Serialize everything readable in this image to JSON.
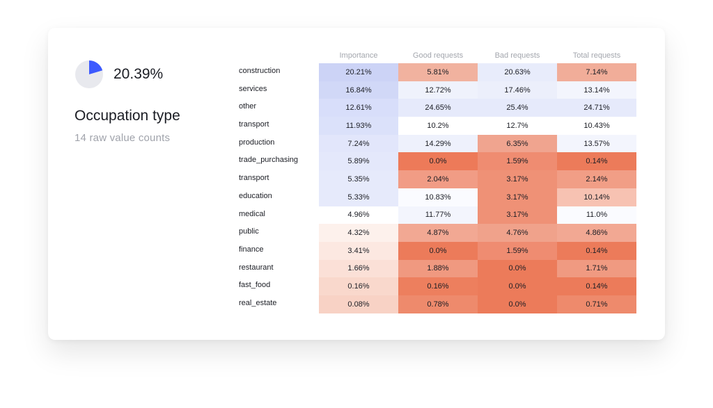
{
  "summary": {
    "pie_percent": 20.39,
    "percent_label": "20.39%",
    "title": "Occupation type",
    "subtitle": "14 raw value counts",
    "pie_fill_color": "#3d5afe",
    "pie_bg_color": "#e8e9ee"
  },
  "chart_data": {
    "type": "heatmap",
    "columns": [
      "Importance",
      "Good requests",
      "Bad requests",
      "Total requests"
    ],
    "rows": [
      {
        "label": "construction",
        "values": [
          "20.21%",
          "5.81%",
          "20.63%",
          "7.14%"
        ],
        "colors": [
          "#ccd3f6",
          "#f1b29f",
          "#e8ecfb",
          "#f1ad99"
        ]
      },
      {
        "label": "services",
        "values": [
          "16.84%",
          "12.72%",
          "17.46%",
          "13.14%"
        ],
        "colors": [
          "#d1d8f7",
          "#eff2fc",
          "#eceffb",
          "#f3f5fd"
        ]
      },
      {
        "label": "other",
        "values": [
          "12.61%",
          "24.65%",
          "25.4%",
          "24.71%"
        ],
        "colors": [
          "#d8defa",
          "#e6eafb",
          "#e6eafb",
          "#e6eafb"
        ]
      },
      {
        "label": "transport",
        "values": [
          "11.93%",
          "10.2%",
          "12.7%",
          "10.43%"
        ],
        "colors": [
          "#dbe1fa",
          "#ffffff",
          "#ffffff",
          "#ffffff"
        ]
      },
      {
        "label": "production",
        "values": [
          "7.24%",
          "14.29%",
          "6.35%",
          "13.57%"
        ],
        "colors": [
          "#e2e6fb",
          "#eef1fc",
          "#f0a48f",
          "#f3f5fd"
        ]
      },
      {
        "label": "trade_purchasing",
        "values": [
          "5.89%",
          "0.0%",
          "1.59%",
          "0.14%"
        ],
        "colors": [
          "#e4e8fb",
          "#ed7a59",
          "#ef8c71",
          "#ec7b5a"
        ]
      },
      {
        "label": "transport",
        "values": [
          "5.35%",
          "2.04%",
          "3.17%",
          "2.14%"
        ],
        "colors": [
          "#e6eafb",
          "#f19c85",
          "#ef9176",
          "#f19e86"
        ]
      },
      {
        "label": "education",
        "values": [
          "5.33%",
          "10.83%",
          "3.17%",
          "10.14%"
        ],
        "colors": [
          "#e6eafb",
          "#fafbff",
          "#ef9176",
          "#f7c2b2"
        ]
      },
      {
        "label": "medical",
        "values": [
          "4.96%",
          "11.77%",
          "3.17%",
          "11.0%"
        ],
        "colors": [
          "#ffffff",
          "#f3f5fd",
          "#ef9176",
          "#fafbff"
        ]
      },
      {
        "label": "public",
        "values": [
          "4.32%",
          "4.87%",
          "4.76%",
          "4.86%"
        ],
        "colors": [
          "#fdf1ec",
          "#f2a893",
          "#f0a28b",
          "#f2a893"
        ]
      },
      {
        "label": "finance",
        "values": [
          "3.41%",
          "0.0%",
          "1.59%",
          "0.14%"
        ],
        "colors": [
          "#fce8e1",
          "#ec7b5a",
          "#ef8c71",
          "#ec7b5a"
        ]
      },
      {
        "label": "restaurant",
        "values": [
          "1.66%",
          "1.88%",
          "0.0%",
          "1.71%"
        ],
        "colors": [
          "#fbe0d7",
          "#f09980",
          "#ec7b5a",
          "#f09a81"
        ]
      },
      {
        "label": "fast_food",
        "values": [
          "0.16%",
          "0.16%",
          "0.0%",
          "0.14%"
        ],
        "colors": [
          "#f9d8cc",
          "#ed7f5e",
          "#ec7b5a",
          "#ec7b5a"
        ]
      },
      {
        "label": "real_estate",
        "values": [
          "0.08%",
          "0.78%",
          "0.0%",
          "0.71%"
        ],
        "colors": [
          "#f8d2c5",
          "#ee8a6c",
          "#ec7b5a",
          "#ee8a6c"
        ]
      }
    ]
  }
}
